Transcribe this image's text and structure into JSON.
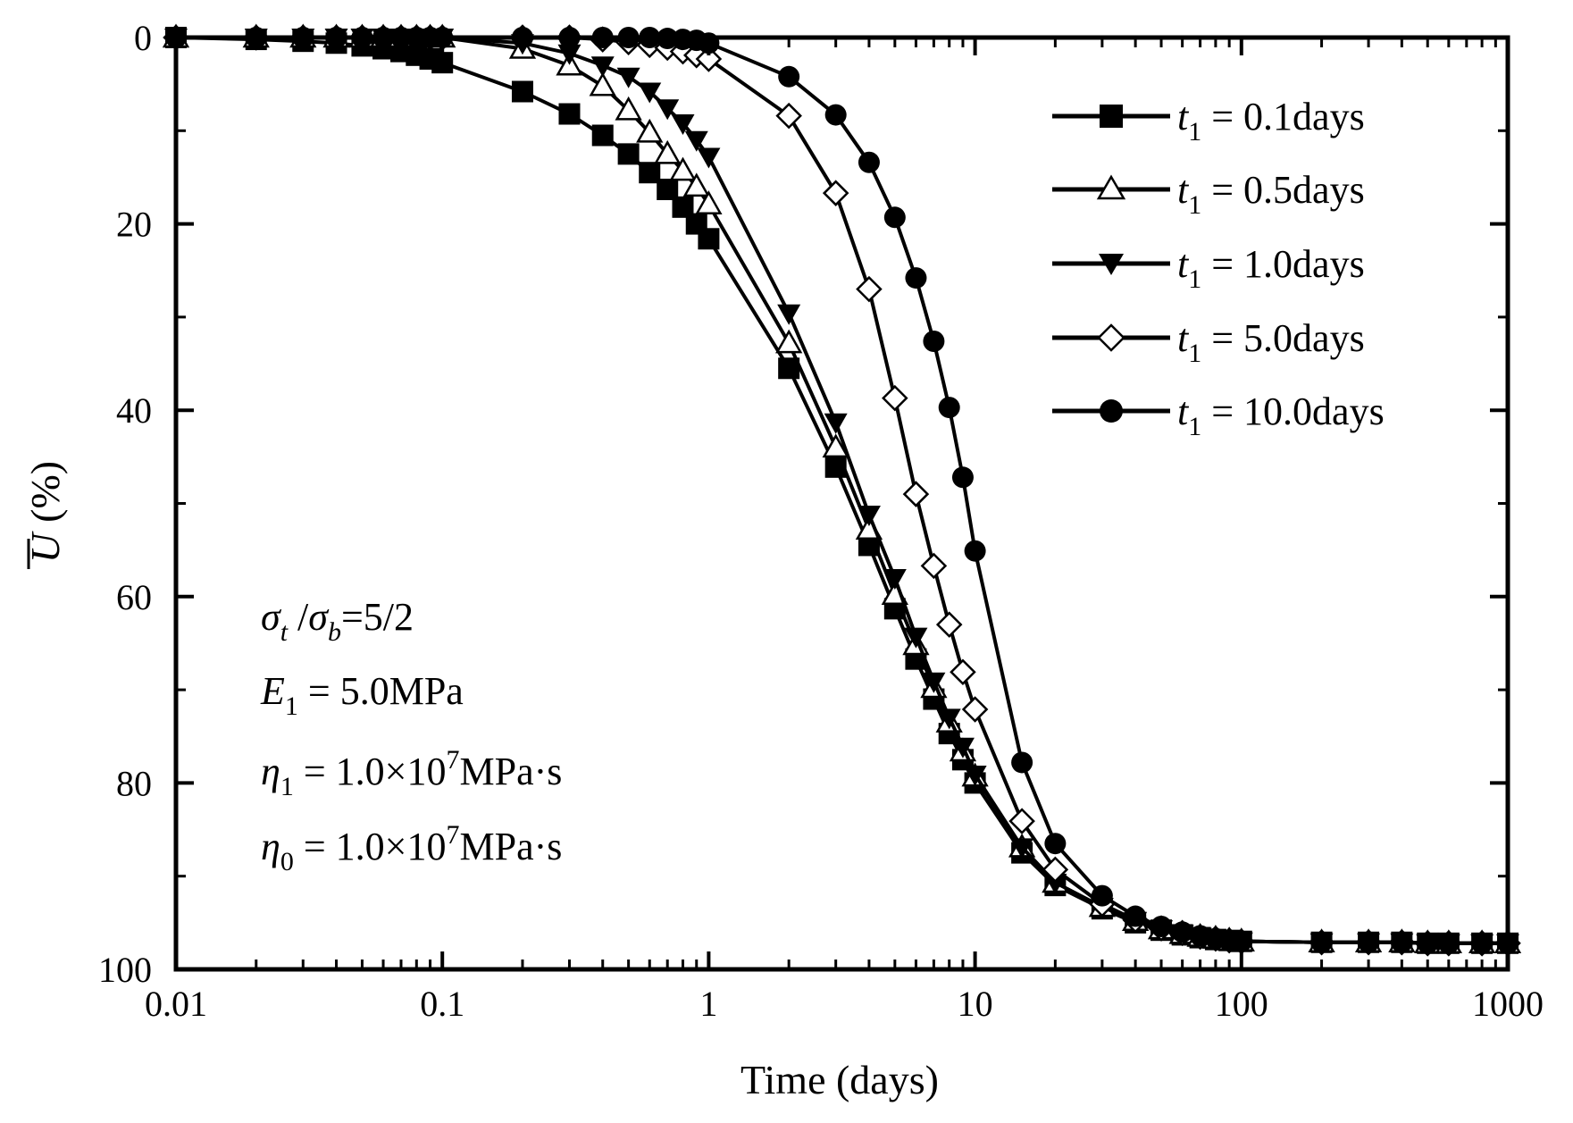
{
  "chart_data": {
    "type": "line",
    "x_scale": "log",
    "xlabel": "Time (days)",
    "ylabel": {
      "symbol": "U",
      "unit": "(%)"
    },
    "xlim": [
      0.01,
      1000
    ],
    "ylim": [
      0,
      100
    ],
    "y_inverted": true,
    "x_ticks": [
      "0.01",
      "0.1",
      "1",
      "10",
      "100",
      "1000"
    ],
    "x_tick_values": [
      0.01,
      0.1,
      1,
      10,
      100,
      1000
    ],
    "y_ticks": [
      "0",
      "20",
      "40",
      "60",
      "80",
      "100"
    ],
    "y_tick_values": [
      0,
      20,
      40,
      60,
      80,
      100
    ],
    "legend_position": "top-right",
    "series": [
      {
        "name": "t1 = 0.1days",
        "var": "t",
        "sub": "1",
        "rest": " = 0.1days",
        "marker": "square-filled",
        "x": [
          0.01,
          0.02,
          0.03,
          0.04,
          0.05,
          0.06,
          0.07,
          0.08,
          0.09,
          0.1,
          0.2,
          0.3,
          0.4,
          0.5,
          0.6,
          0.7,
          0.8,
          0.9,
          1,
          2,
          3,
          4,
          5,
          6,
          7,
          8,
          9,
          10,
          15,
          20,
          30,
          40,
          50,
          60,
          70,
          80,
          90,
          100,
          200,
          300,
          400,
          500,
          600,
          800,
          1000
        ],
        "y": [
          0,
          0.2,
          0.4,
          0.6,
          0.9,
          1.2,
          1.5,
          1.9,
          2.3,
          2.7,
          5.8,
          8.2,
          10.5,
          12.5,
          14.5,
          16.3,
          18.2,
          20,
          21.6,
          35.5,
          46.1,
          54.5,
          61.3,
          66.7,
          71,
          74.7,
          77.5,
          80,
          87.5,
          91,
          93.5,
          95,
          95.8,
          96.3,
          96.6,
          96.8,
          96.9,
          97,
          97.1,
          97.1,
          97.1,
          97.2,
          97.2,
          97.2,
          97.2
        ]
      },
      {
        "name": "t1 = 0.5days",
        "var": "t",
        "sub": "1",
        "rest": " = 0.5days",
        "marker": "triangle-open",
        "x": [
          0.01,
          0.02,
          0.03,
          0.04,
          0.05,
          0.06,
          0.07,
          0.08,
          0.09,
          0.1,
          0.2,
          0.3,
          0.4,
          0.5,
          0.6,
          0.7,
          0.8,
          0.9,
          1,
          2,
          3,
          4,
          5,
          6,
          7,
          8,
          9,
          10,
          15,
          20,
          30,
          40,
          50,
          60,
          70,
          80,
          90,
          100,
          200,
          300,
          400,
          500,
          600,
          800,
          1000
        ],
        "y": [
          0,
          0,
          0,
          0,
          0,
          0,
          0,
          0,
          0,
          0,
          1.2,
          3,
          5.2,
          7.8,
          10.2,
          12.5,
          14.3,
          16,
          17.9,
          32.8,
          44,
          52.8,
          59.8,
          65.2,
          69.8,
          73.5,
          76.6,
          79.3,
          86.9,
          90.7,
          93.3,
          94.8,
          95.7,
          96.2,
          96.5,
          96.7,
          96.9,
          97,
          97.1,
          97.1,
          97.1,
          97.2,
          97.2,
          97.2,
          97.2
        ]
      },
      {
        "name": "t1 = 1.0days",
        "var": "t",
        "sub": "1",
        "rest": " = 1.0days",
        "marker": "triangle-down-filled",
        "x": [
          0.01,
          0.02,
          0.03,
          0.04,
          0.05,
          0.06,
          0.07,
          0.08,
          0.09,
          0.1,
          0.2,
          0.3,
          0.4,
          0.5,
          0.6,
          0.7,
          0.8,
          0.9,
          1,
          2,
          3,
          4,
          5,
          6,
          7,
          8,
          9,
          10,
          15,
          20,
          30,
          40,
          50,
          60,
          70,
          80,
          90,
          100,
          200,
          300,
          400,
          500,
          600,
          800,
          1000
        ],
        "y": [
          0,
          0,
          0,
          0,
          0,
          0,
          0,
          0,
          0,
          0,
          0.6,
          1.7,
          3,
          4.2,
          5.8,
          7.6,
          9.2,
          11,
          12.8,
          29.6,
          41.3,
          51.2,
          58,
          64.3,
          69.1,
          73,
          76.1,
          79.1,
          86.9,
          90.7,
          93.3,
          94.8,
          95.7,
          96.2,
          96.5,
          96.7,
          96.9,
          97,
          97.1,
          97.1,
          97.1,
          97.2,
          97.2,
          97.2,
          97.2
        ]
      },
      {
        "name": "t1 = 5.0days",
        "var": "t",
        "sub": "1",
        "rest": " = 5.0days",
        "marker": "diamond-open",
        "x": [
          0.01,
          0.02,
          0.03,
          0.04,
          0.05,
          0.06,
          0.07,
          0.08,
          0.09,
          0.1,
          0.2,
          0.3,
          0.4,
          0.5,
          0.6,
          0.7,
          0.8,
          0.9,
          1,
          2,
          3,
          4,
          5,
          6,
          7,
          8,
          9,
          10,
          15,
          20,
          30,
          40,
          50,
          60,
          70,
          80,
          90,
          100,
          200,
          300,
          400,
          500,
          600,
          800,
          1000
        ],
        "y": [
          0,
          0,
          0,
          0,
          0,
          0,
          0,
          0,
          0,
          0,
          0,
          0,
          0.2,
          0.5,
          0.8,
          1.1,
          1.5,
          1.9,
          2.3,
          8.4,
          16.7,
          27,
          38.7,
          49,
          56.7,
          63,
          68.1,
          72.1,
          84.1,
          89.3,
          93,
          94.7,
          95.6,
          96.1,
          96.5,
          96.7,
          96.9,
          97,
          97.1,
          97.1,
          97.1,
          97.2,
          97.2,
          97.2,
          97.2
        ]
      },
      {
        "name": "t1 = 10.0days",
        "var": "t",
        "sub": "1",
        "rest": " = 10.0days",
        "marker": "circle-filled",
        "x": [
          0.01,
          0.02,
          0.03,
          0.04,
          0.05,
          0.06,
          0.07,
          0.08,
          0.09,
          0.1,
          0.2,
          0.3,
          0.4,
          0.5,
          0.6,
          0.7,
          0.8,
          0.9,
          1,
          2,
          3,
          4,
          5,
          6,
          7,
          8,
          9,
          10,
          15,
          20,
          30,
          40,
          50,
          60,
          70,
          80,
          90,
          100,
          200,
          300,
          400,
          500,
          600,
          800,
          1000
        ],
        "y": [
          0,
          0,
          0,
          0,
          0,
          0,
          0,
          0,
          0,
          0,
          0,
          0,
          0,
          0,
          0,
          0.1,
          0.2,
          0.3,
          0.6,
          4.2,
          8.3,
          13.4,
          19.3,
          25.8,
          32.6,
          39.7,
          47.2,
          55.1,
          77.8,
          86.5,
          92.1,
          94.3,
          95.4,
          96,
          96.4,
          96.7,
          96.9,
          97,
          97.1,
          97.1,
          97.1,
          97.2,
          97.2,
          97.2,
          97.2
        ]
      }
    ]
  },
  "annotations": {
    "ratio": {
      "sigma": "σ",
      "sub_t": "t",
      "slash": " /",
      "sub_b": "b",
      "value": "=5/2"
    },
    "e1": {
      "var": "E",
      "sub": "1",
      "rest": " = 5.0MPa"
    },
    "eta1": {
      "var": "η",
      "sub": "1",
      "rest": " = 1.0×10",
      "exp": "7",
      "tail": "MPa·s"
    },
    "eta0": {
      "var": "η",
      "sub": "0",
      "rest": " = 1.0×10",
      "exp": "7",
      "tail": "MPa·s"
    }
  }
}
